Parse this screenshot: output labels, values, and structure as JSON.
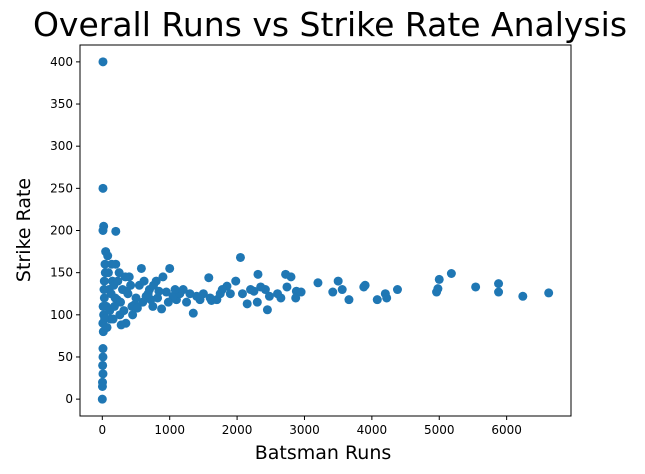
{
  "chart_data": {
    "type": "scatter",
    "title": "Overall Runs vs Strike Rate Analysis",
    "x_label": "Batsman Runs",
    "y_label": "Strike Rate",
    "color": "#1f77b4",
    "x": [
      0,
      10,
      10,
      20,
      10,
      200,
      2050,
      5180,
      6624,
      6240,
      5880,
      5880,
      5540,
      5000,
      4980,
      4960,
      4380,
      4200,
      4220,
      4080,
      3900,
      3880,
      3660,
      3500,
      3560,
      3420,
      3200,
      2880,
      2870,
      2800,
      2720,
      2740,
      2650,
      2480,
      2450,
      2420,
      2350,
      2310,
      2300,
      2200,
      2150,
      2080,
      1980,
      1900,
      1850,
      1780,
      1700,
      1620,
      1580,
      1500,
      1450,
      1400,
      1350,
      1300,
      1200,
      1100,
      1000,
      950,
      900,
      880,
      800,
      750,
      700,
      600,
      580,
      550,
      500,
      450,
      400,
      350,
      300,
      280,
      250,
      200,
      180,
      150,
      120,
      100,
      80,
      50,
      40,
      30,
      20,
      15,
      10,
      5,
      3,
      2,
      30,
      60,
      90,
      130,
      170,
      220,
      260,
      320,
      380,
      420,
      480,
      650,
      720,
      820,
      1050,
      1150,
      1250,
      10,
      10,
      8,
      12,
      25,
      35,
      45,
      70,
      110,
      140,
      160,
      190,
      230,
      270,
      340,
      360,
      440,
      520,
      620,
      680,
      760,
      840,
      980,
      1080,
      1600,
      1750,
      2250,
      2600,
      2950
    ],
    "y": [
      0,
      400,
      250,
      205,
      200,
      199,
      168,
      149,
      126,
      122,
      137,
      127,
      133,
      142,
      131,
      127,
      130,
      125,
      120,
      118,
      135,
      133,
      118,
      140,
      130,
      127,
      138,
      128,
      120,
      145,
      148,
      133,
      120,
      122,
      106,
      130,
      133,
      148,
      115,
      130,
      113,
      125,
      140,
      125,
      134,
      130,
      118,
      117,
      144,
      125,
      118,
      122,
      102,
      125,
      130,
      118,
      155,
      127,
      145,
      107,
      140,
      110,
      130,
      115,
      155,
      135,
      120,
      100,
      145,
      90,
      130,
      88,
      150,
      160,
      110,
      140,
      95,
      130,
      170,
      175,
      160,
      120,
      100,
      80,
      60,
      40,
      20,
      15,
      140,
      110,
      150,
      125,
      135,
      118,
      100,
      105,
      125,
      135,
      112,
      122,
      118,
      120,
      122,
      125,
      115,
      50,
      30,
      90,
      110,
      130,
      95,
      150,
      85,
      105,
      160,
      95,
      120,
      140,
      115,
      145,
      128,
      110,
      108,
      140,
      125,
      135,
      128,
      115,
      130,
      120,
      125,
      128,
      125,
      127
    ],
    "xlim": [
      -331,
      6955
    ],
    "ylim": [
      -20,
      420
    ],
    "xticks": [
      0,
      1000,
      2000,
      3000,
      4000,
      5000,
      6000
    ],
    "yticks": [
      0,
      50,
      100,
      150,
      200,
      250,
      300,
      350,
      400
    ]
  }
}
